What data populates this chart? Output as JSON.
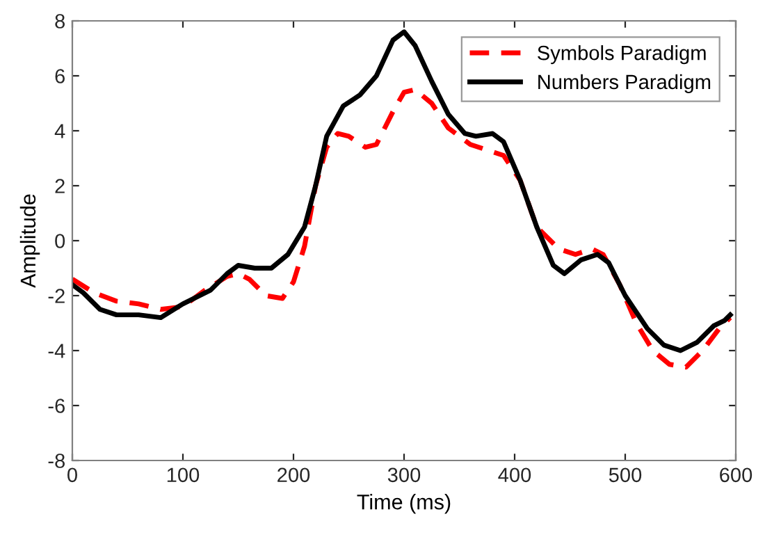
{
  "chart_data": {
    "type": "line",
    "xlabel": "Time (ms)",
    "ylabel": "Amplitude",
    "xlim": [
      0,
      600
    ],
    "xticks": [
      0,
      100,
      200,
      300,
      400,
      500,
      600
    ],
    "ylim": [
      -8,
      8
    ],
    "yticks": [
      -8,
      -6,
      -4,
      -2,
      0,
      2,
      4,
      6,
      8
    ],
    "grid": false,
    "legend": "top right",
    "marker": "none",
    "series": [
      {
        "name": "Symbols Paradigm",
        "color": "#ff0000",
        "line_style": "dashed",
        "x": [
          0,
          20,
          40,
          60,
          80,
          100,
          120,
          140,
          150,
          160,
          175,
          190,
          200,
          210,
          220,
          230,
          240,
          250,
          265,
          275,
          290,
          300,
          310,
          325,
          340,
          360,
          375,
          390,
          405,
          420,
          440,
          455,
          470,
          480,
          495,
          510,
          525,
          540,
          555,
          570,
          585,
          595
        ],
        "values": [
          -1.4,
          -1.9,
          -2.2,
          -2.3,
          -2.5,
          -2.4,
          -1.8,
          -1.3,
          -1.2,
          -1.4,
          -2.0,
          -2.1,
          -1.5,
          -0.2,
          2.0,
          3.4,
          3.9,
          3.8,
          3.4,
          3.5,
          4.7,
          5.4,
          5.5,
          5.0,
          4.1,
          3.5,
          3.3,
          3.1,
          2.2,
          0.5,
          -0.3,
          -0.5,
          -0.3,
          -0.5,
          -1.6,
          -3.0,
          -4.0,
          -4.5,
          -4.6,
          -4.0,
          -3.2,
          -2.8
        ]
      },
      {
        "name": "Numbers Paradigm",
        "color": "#000000",
        "line_style": "solid",
        "x": [
          0,
          10,
          25,
          40,
          60,
          80,
          100,
          125,
          140,
          150,
          165,
          180,
          195,
          210,
          220,
          230,
          245,
          260,
          275,
          290,
          300,
          310,
          325,
          340,
          355,
          365,
          380,
          390,
          405,
          420,
          435,
          445,
          460,
          475,
          485,
          500,
          520,
          535,
          550,
          565,
          580,
          590,
          595
        ],
        "values": [
          -1.6,
          -1.9,
          -2.5,
          -2.7,
          -2.7,
          -2.8,
          -2.3,
          -1.8,
          -1.2,
          -0.9,
          -1.0,
          -1.0,
          -0.5,
          0.5,
          2.0,
          3.8,
          4.9,
          5.3,
          6.0,
          7.3,
          7.6,
          7.1,
          5.8,
          4.6,
          3.9,
          3.8,
          3.9,
          3.6,
          2.2,
          0.5,
          -0.9,
          -1.2,
          -0.7,
          -0.5,
          -0.8,
          -2.0,
          -3.2,
          -3.8,
          -4.0,
          -3.7,
          -3.1,
          -2.9,
          -2.7
        ]
      }
    ]
  }
}
